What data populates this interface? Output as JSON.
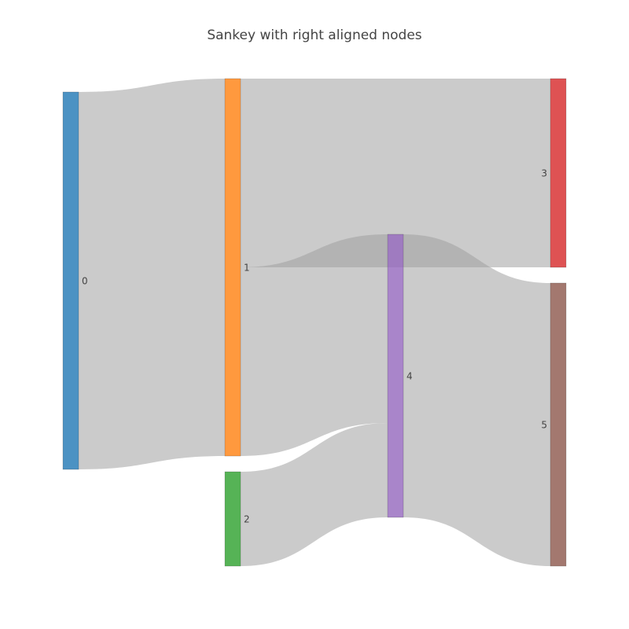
{
  "chart_data": {
    "type": "sankey",
    "title": "Sankey with right aligned nodes",
    "alignment": "right",
    "link_color": "#a0a0a0",
    "highlight_link_color": "#7f7f7f",
    "nodes": [
      {
        "label": "0",
        "color": "#1f77b4",
        "column": 0
      },
      {
        "label": "1",
        "color": "#ff7f0e",
        "column": 1
      },
      {
        "label": "2",
        "color": "#2ca02c",
        "column": 1
      },
      {
        "label": "3",
        "color": "#d62728",
        "column": 3
      },
      {
        "label": "4",
        "color": "#9467bd",
        "column": 2
      },
      {
        "label": "5",
        "color": "#8c564b",
        "column": 3
      }
    ],
    "links": [
      {
        "source": 0,
        "target": 1,
        "value": 24
      },
      {
        "source": 1,
        "target": 3,
        "value": 12
      },
      {
        "source": 1,
        "target": 4,
        "value": 12
      },
      {
        "source": 2,
        "target": 4,
        "value": 6
      },
      {
        "source": 4,
        "target": 3,
        "value": 0
      },
      {
        "source": 4,
        "target": 5,
        "value": 18
      }
    ]
  }
}
